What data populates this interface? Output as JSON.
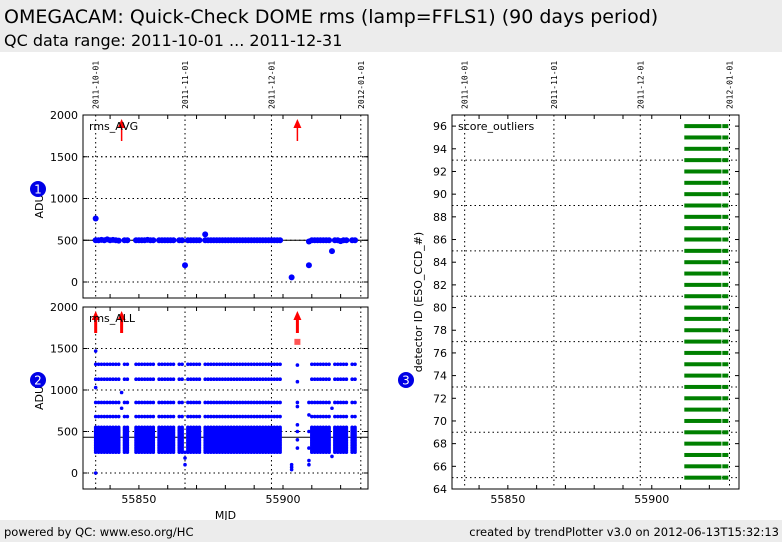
{
  "header": {
    "title": "OMEGACAM: Quick-Check DOME rms (lamp=FFLS1)  (90 days period)",
    "subtitle": "QC data range: 2011-10-01 ... 2011-12-31"
  },
  "footer": {
    "left": "powered by QC: www.eso.org/HC",
    "right": "created by trendPlotter v3.0 on 2012-06-13T15:32:13"
  },
  "colors": {
    "points": "#0000ff",
    "outlier": "#ff0000",
    "score": "#008000",
    "header_bg": "#ececec"
  },
  "badges": [
    "1",
    "2",
    "3"
  ],
  "chart_data": [
    {
      "type": "scatter",
      "label": "rms_AVG",
      "ylabel": "ADU",
      "ylim": [
        -200,
        2000
      ],
      "xlim": [
        55830.6,
        55929.5
      ],
      "yticks": [
        "2000",
        "1500",
        "1000",
        "500",
        "0"
      ],
      "yticks_values": [
        2000,
        1500,
        1000,
        500,
        0
      ],
      "date_ticks": [
        {
          "label": "2011-10-01",
          "mjd": 55835
        },
        {
          "label": "2011-11-01",
          "mjd": 55866
        },
        {
          "label": "2011-12-01",
          "mjd": 55896
        },
        {
          "label": "2012-01-01",
          "mjd": 55927
        }
      ],
      "reference_line": 500,
      "points": [
        [
          55835,
          760
        ],
        [
          55835,
          500
        ],
        [
          55836,
          500
        ],
        [
          55837,
          505
        ],
        [
          55838,
          500
        ],
        [
          55839,
          510
        ],
        [
          55840,
          500
        ],
        [
          55841,
          505
        ],
        [
          55842,
          500
        ],
        [
          55843,
          495
        ],
        [
          55845,
          500
        ],
        [
          55846,
          500
        ],
        [
          55849,
          500
        ],
        [
          55850,
          500
        ],
        [
          55851,
          500
        ],
        [
          55852,
          500
        ],
        [
          55853,
          505
        ],
        [
          55854,
          500
        ],
        [
          55855,
          500
        ],
        [
          55857,
          500
        ],
        [
          55858,
          500
        ],
        [
          55859,
          500
        ],
        [
          55860,
          500
        ],
        [
          55861,
          500
        ],
        [
          55862,
          500
        ],
        [
          55864,
          500
        ],
        [
          55865,
          500
        ],
        [
          55866,
          200
        ],
        [
          55867,
          500
        ],
        [
          55868,
          500
        ],
        [
          55869,
          500
        ],
        [
          55870,
          500
        ],
        [
          55871,
          500
        ],
        [
          55873,
          570
        ],
        [
          55873,
          500
        ],
        [
          55874,
          500
        ],
        [
          55875,
          500
        ],
        [
          55876,
          500
        ],
        [
          55877,
          500
        ],
        [
          55878,
          500
        ],
        [
          55879,
          500
        ],
        [
          55880,
          500
        ],
        [
          55881,
          500
        ],
        [
          55882,
          500
        ],
        [
          55883,
          500
        ],
        [
          55884,
          500
        ],
        [
          55885,
          500
        ],
        [
          55886,
          500
        ],
        [
          55887,
          500
        ],
        [
          55888,
          500
        ],
        [
          55889,
          500
        ],
        [
          55890,
          500
        ],
        [
          55891,
          500
        ],
        [
          55892,
          500
        ],
        [
          55893,
          500
        ],
        [
          55894,
          500
        ],
        [
          55895,
          500
        ],
        [
          55896,
          500
        ],
        [
          55897,
          500
        ],
        [
          55898,
          500
        ],
        [
          55899,
          500
        ],
        [
          55903,
          55
        ],
        [
          55909,
          200
        ],
        [
          55909,
          485
        ],
        [
          55910,
          500
        ],
        [
          55911,
          500
        ],
        [
          55912,
          500
        ],
        [
          55913,
          500
        ],
        [
          55914,
          500
        ],
        [
          55915,
          500
        ],
        [
          55916,
          500
        ],
        [
          55917,
          370
        ],
        [
          55918,
          500
        ],
        [
          55919,
          500
        ],
        [
          55920,
          490
        ],
        [
          55921,
          500
        ],
        [
          55922,
          500
        ],
        [
          55924,
          500
        ],
        [
          55925,
          500
        ]
      ],
      "out_of_range_up": [
        55844,
        55905
      ]
    },
    {
      "type": "scatter",
      "label": "rms_ALL",
      "ylabel": "ADU",
      "xlabel": "MJD",
      "ylim": [
        -200,
        2000
      ],
      "xlim": [
        55830.6,
        55929.5
      ],
      "yticks": [
        "2000",
        "1500",
        "1000",
        "500",
        "0"
      ],
      "yticks_values": [
        2000,
        1500,
        1000,
        500,
        0
      ],
      "xticks": [
        "55850",
        "55900"
      ],
      "xticks_values": [
        55850,
        55900
      ],
      "reference_line": 430,
      "nights": [
        55835,
        55836,
        55837,
        55838,
        55839,
        55840,
        55841,
        55842,
        55843,
        55845,
        55846,
        55849,
        55850,
        55851,
        55852,
        55853,
        55854,
        55855,
        55857,
        55858,
        55859,
        55860,
        55861,
        55862,
        55864,
        55865,
        55867,
        55868,
        55869,
        55870,
        55871,
        55873,
        55874,
        55875,
        55876,
        55877,
        55878,
        55879,
        55880,
        55881,
        55882,
        55883,
        55884,
        55885,
        55886,
        55887,
        55888,
        55889,
        55890,
        55891,
        55892,
        55893,
        55894,
        55895,
        55896,
        55897,
        55898,
        55899,
        55910,
        55911,
        55912,
        55913,
        55914,
        55915,
        55916,
        55918,
        55919,
        55920,
        55921,
        55922,
        55924,
        55925
      ],
      "levels": [
        1310,
        1130,
        850,
        680
      ],
      "band": [
        250,
        550
      ],
      "extra_points": [
        [
          55835,
          1470
        ],
        [
          55835,
          1030
        ],
        [
          55835,
          0
        ],
        [
          55844,
          970
        ],
        [
          55844,
          780
        ],
        [
          55866,
          250
        ],
        [
          55866,
          180
        ],
        [
          55866,
          100
        ],
        [
          55903,
          100
        ],
        [
          55903,
          70
        ],
        [
          55903,
          40
        ],
        [
          55905,
          1300
        ],
        [
          55905,
          1100
        ],
        [
          55905,
          850
        ],
        [
          55905,
          800
        ],
        [
          55905,
          580
        ],
        [
          55905,
          500
        ],
        [
          55905,
          400
        ],
        [
          55905,
          300
        ],
        [
          55909,
          850
        ],
        [
          55909,
          700
        ],
        [
          55909,
          500
        ],
        [
          55909,
          300
        ],
        [
          55909,
          150
        ],
        [
          55909,
          100
        ],
        [
          55917,
          780
        ],
        [
          55917,
          200
        ]
      ],
      "outlier_points": [
        [
          55905,
          1580
        ]
      ],
      "out_of_range_up": [
        55835,
        55844,
        55905
      ]
    },
    {
      "type": "scatter",
      "label": "score_outliers",
      "ylabel": "detector ID (ESO_CCD_#)",
      "ylim": [
        64,
        96.9
      ],
      "xlim": [
        55830.6,
        55930.3
      ],
      "yticks": [
        "64",
        "66",
        "68",
        "70",
        "72",
        "74",
        "76",
        "78",
        "80",
        "82",
        "84",
        "86",
        "88",
        "90",
        "92",
        "94",
        "96"
      ],
      "xticks": [
        "55850",
        "55900"
      ],
      "xticks_values": [
        55850,
        55900
      ],
      "date_ticks": [
        {
          "label": "2011-10-01",
          "mjd": 55835
        },
        {
          "label": "2011-11-01",
          "mjd": 55866
        },
        {
          "label": "2011-12-01",
          "mjd": 55896
        },
        {
          "label": "2012-01-01",
          "mjd": 55927
        }
      ],
      "hgrid": [
        65,
        69,
        73,
        77,
        81,
        85,
        89,
        93
      ],
      "detectors": [
        65,
        66,
        67,
        68,
        69,
        70,
        71,
        72,
        73,
        74,
        75,
        76,
        77,
        78,
        79,
        80,
        81,
        82,
        83,
        84,
        85,
        86,
        87,
        88,
        89,
        90,
        91,
        92,
        93,
        94,
        95,
        96
      ],
      "segments": [
        [
          55911.3,
          55924.2
        ],
        [
          55924.5,
          55926.6
        ]
      ]
    }
  ]
}
